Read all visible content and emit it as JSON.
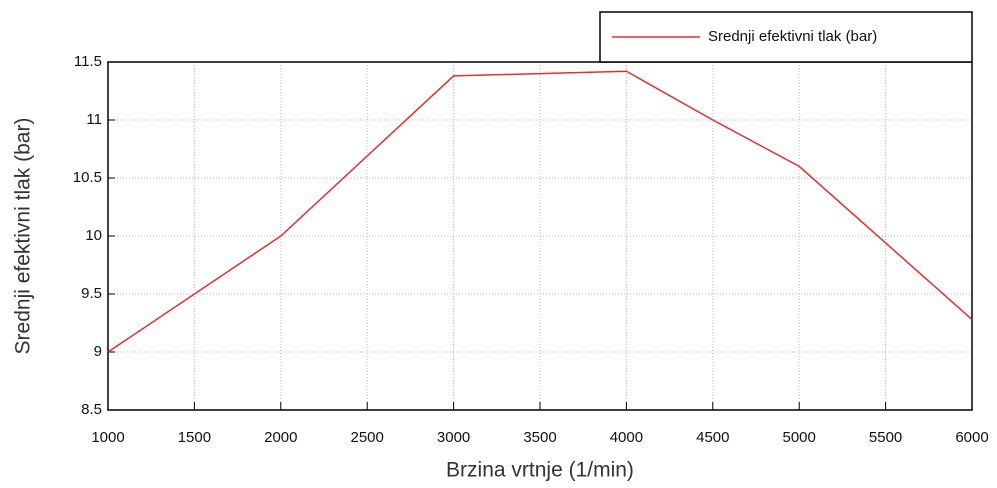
{
  "chart_data": {
    "type": "line",
    "x_label": "Brzina vrtnje (1/min)",
    "y_label": "Srednji efektivni tlak (bar)",
    "x": [
      1000,
      2000,
      3000,
      3500,
      4000,
      4500,
      5000,
      6000
    ],
    "series": [
      {
        "name": "Srednji efektivni tlak (bar)",
        "color": "#e03030",
        "values": [
          9.0,
          10.0,
          11.38,
          11.4,
          11.42,
          11.0,
          10.6,
          9.28
        ]
      }
    ],
    "xlim": [
      1000,
      6000
    ],
    "xticks": [
      1000,
      1500,
      2000,
      2500,
      3000,
      3500,
      4000,
      4500,
      5000,
      5500,
      6000
    ],
    "ylim": [
      8.5,
      11.5
    ],
    "yticks": [
      8.5,
      9,
      9.5,
      10,
      10.5,
      11,
      11.5
    ],
    "grid": true,
    "legend": "top-right"
  }
}
